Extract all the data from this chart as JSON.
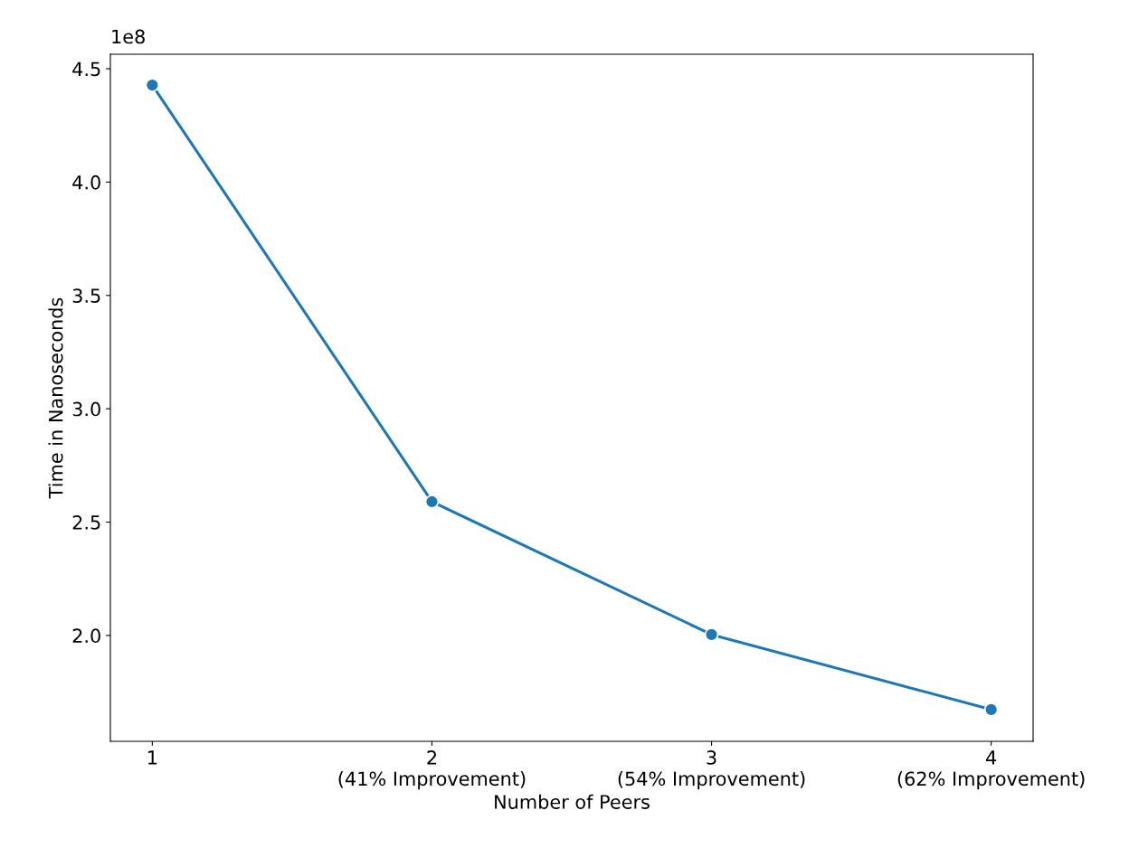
{
  "chart_data": {
    "type": "line",
    "xlabel": "Number of Peers",
    "ylabel": "Time in Nanoseconds",
    "categories": [
      "1",
      "2\n(41% Improvement)",
      "3\n(54% Improvement)",
      "4\n(62% Improvement)"
    ],
    "series": [
      {
        "color": "#1f77b4",
        "values": [
          4.428,
          2.59,
          2.004,
          1.673
        ]
      }
    ],
    "ylim": [
      1.533,
      4.564
    ],
    "yticks": [
      {
        "value": 2.0,
        "label": "2.0"
      },
      {
        "value": 2.5,
        "label": "2.5"
      },
      {
        "value": 3.0,
        "label": "3.0"
      },
      {
        "value": 3.5,
        "label": "3.5"
      },
      {
        "value": 4.0,
        "label": "4.0"
      },
      {
        "value": 4.5,
        "label": "4.5"
      }
    ],
    "annotations": [
      "1e8"
    ],
    "marker": "circle",
    "line_style": "solid",
    "grid": false,
    "legend": false
  }
}
